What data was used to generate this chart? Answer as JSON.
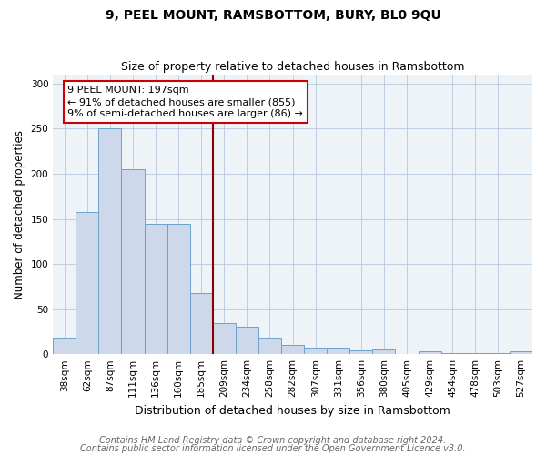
{
  "title": "9, PEEL MOUNT, RAMSBOTTOM, BURY, BL0 9QU",
  "subtitle": "Size of property relative to detached houses in Ramsbottom",
  "xlabel": "Distribution of detached houses by size in Ramsbottom",
  "ylabel": "Number of detached properties",
  "footnote1": "Contains HM Land Registry data © Crown copyright and database right 2024.",
  "footnote2": "Contains public sector information licensed under the Open Government Licence v3.0.",
  "categories": [
    "38sqm",
    "62sqm",
    "87sqm",
    "111sqm",
    "136sqm",
    "160sqm",
    "185sqm",
    "209sqm",
    "234sqm",
    "258sqm",
    "282sqm",
    "307sqm",
    "331sqm",
    "356sqm",
    "380sqm",
    "405sqm",
    "429sqm",
    "454sqm",
    "478sqm",
    "503sqm",
    "527sqm"
  ],
  "values": [
    18,
    158,
    250,
    205,
    145,
    145,
    68,
    35,
    30,
    18,
    10,
    7,
    7,
    4,
    5,
    0,
    3,
    1,
    1,
    1,
    3
  ],
  "bar_color": "#cdd9ea",
  "bar_edge_color": "#6ba3cd",
  "annotation_line_color": "#8b0000",
  "annotation_box_text": "9 PEEL MOUNT: 197sqm\n← 91% of detached houses are smaller (855)\n9% of semi-detached houses are larger (86) →",
  "annotation_box_color": "#cc0000",
  "ylim": [
    0,
    310
  ],
  "yticks": [
    0,
    50,
    100,
    150,
    200,
    250,
    300
  ],
  "title_fontsize": 10,
  "subtitle_fontsize": 9,
  "xlabel_fontsize": 9,
  "ylabel_fontsize": 8.5,
  "tick_fontsize": 7.5,
  "annotation_fontsize": 8,
  "footnote_fontsize": 7
}
